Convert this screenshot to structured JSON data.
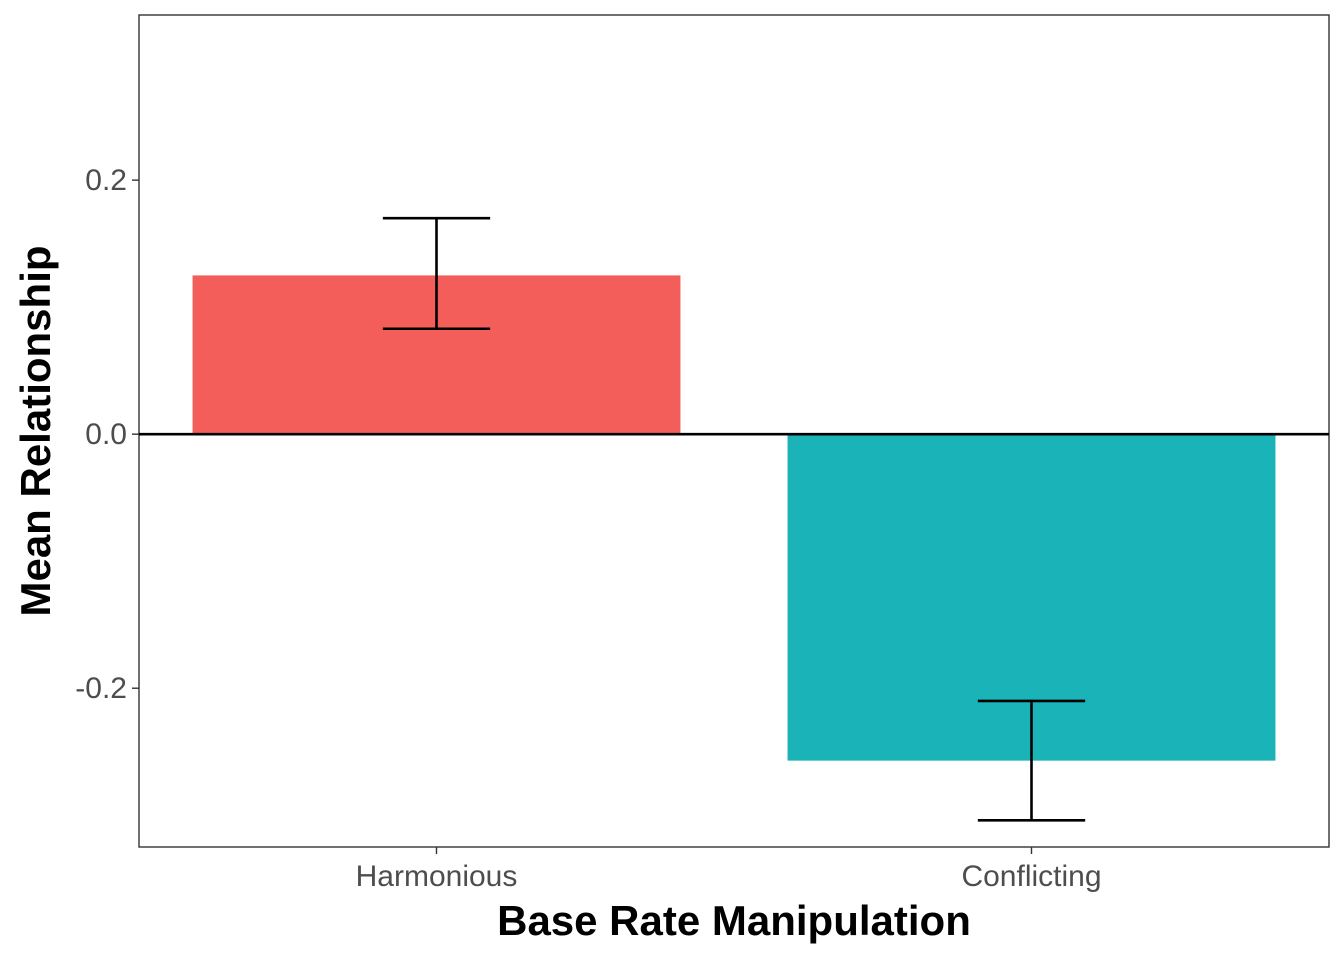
{
  "chart_data": {
    "type": "bar",
    "title": "",
    "xlabel": "Base Rate Manipulation",
    "ylabel": "Mean Relationship",
    "categories": [
      "Harmonious",
      "Conflicting"
    ],
    "values": [
      0.125,
      -0.257
    ],
    "error_low": [
      0.083,
      -0.304
    ],
    "error_high": [
      0.17,
      -0.21
    ],
    "colors": [
      "#F35E5A",
      "#19B3B8"
    ],
    "ylim": [
      -0.325,
      0.33
    ],
    "yticks": [
      -0.2,
      0.0,
      0.2
    ],
    "ytick_labels": [
      "-0.2",
      "0.0",
      "0.2"
    ],
    "zero_line": true,
    "grid": false,
    "legend": "none"
  }
}
